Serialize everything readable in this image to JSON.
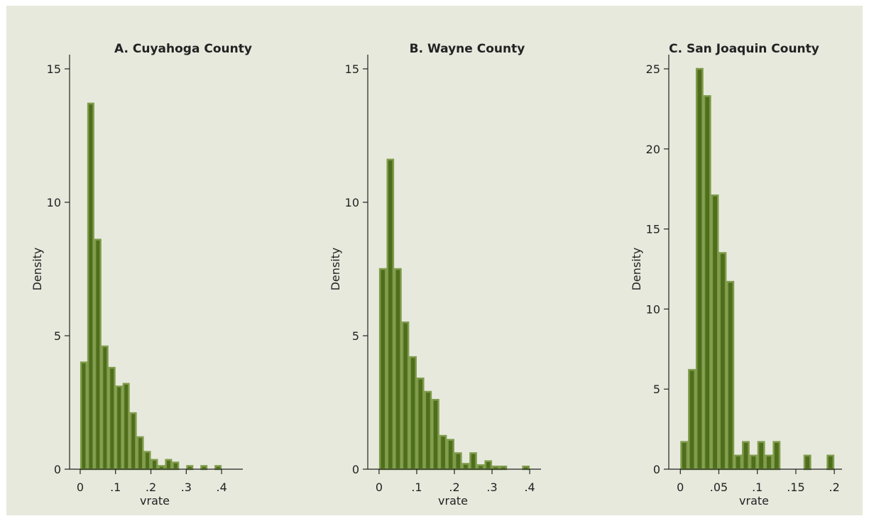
{
  "chart_data": [
    {
      "type": "bar",
      "title": "A. Cuyahoga County",
      "xlabel": "vrate",
      "ylabel": "Density",
      "bin_width": 0.02,
      "bin_start": 0,
      "values": [
        4.0,
        13.7,
        8.6,
        4.6,
        3.8,
        3.1,
        3.2,
        2.1,
        1.2,
        0.65,
        0.35,
        0.12,
        0.35,
        0.25,
        0,
        0.12,
        0,
        0.12,
        0,
        0.12,
        0
      ],
      "xlim": [
        -0.03,
        0.46
      ],
      "ylim": [
        0,
        15
      ],
      "xticks": [
        0,
        0.1,
        0.2,
        0.3,
        0.4
      ],
      "xticklabels": [
        "0",
        ".1",
        ".2",
        ".3",
        ".4"
      ],
      "yticks": [
        0,
        5,
        10,
        15
      ],
      "yticklabels": [
        "0",
        "5",
        "10",
        "15"
      ],
      "grid": false,
      "legend": "none"
    },
    {
      "type": "bar",
      "title": "B. Wayne County",
      "xlabel": "vrate",
      "ylabel": "Density",
      "bin_width": 0.02,
      "bin_start": 0,
      "values": [
        7.5,
        11.6,
        7.5,
        5.5,
        4.2,
        3.4,
        2.9,
        2.6,
        1.25,
        1.1,
        0.6,
        0.2,
        0.6,
        0.15,
        0.3,
        0.1,
        0.1,
        0,
        0,
        0.1
      ],
      "xlim": [
        -0.03,
        0.43
      ],
      "ylim": [
        0,
        15
      ],
      "xticks": [
        0,
        0.1,
        0.2,
        0.3,
        0.4
      ],
      "xticklabels": [
        "0",
        ".1",
        ".2",
        ".3",
        ".4"
      ],
      "yticks": [
        0,
        5,
        10,
        15
      ],
      "yticklabels": [
        "0",
        "5",
        "10",
        "15"
      ],
      "grid": false,
      "legend": "none"
    },
    {
      "type": "bar",
      "title": "C. San Joaquin County",
      "xlabel": "vrate",
      "ylabel": "Density",
      "bin_width": 0.01,
      "bin_start": 0,
      "values": [
        1.7,
        6.2,
        25.0,
        23.3,
        17.1,
        13.5,
        11.7,
        0.85,
        1.7,
        0.85,
        1.7,
        0.85,
        1.7,
        0,
        0,
        0,
        0.85,
        0,
        0,
        0.85
      ],
      "xlim": [
        -0.015,
        0.21
      ],
      "ylim": [
        0,
        25
      ],
      "xticks": [
        0,
        0.05,
        0.1,
        0.15,
        0.2
      ],
      "xticklabels": [
        "0",
        ".05",
        ".1",
        ".15",
        ".2"
      ],
      "yticks": [
        0,
        5,
        10,
        15,
        20,
        25
      ],
      "yticklabels": [
        "0",
        "5",
        "10",
        "15",
        "20",
        "25"
      ],
      "grid": false,
      "legend": "none"
    }
  ]
}
